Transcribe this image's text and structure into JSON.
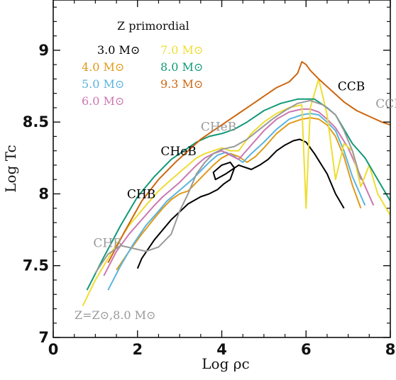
{
  "chart_data": {
    "type": "line",
    "title": "Z primordial",
    "xlabel": "Log ρc",
    "ylabel": "Log Tc",
    "xlim": [
      0,
      8
    ],
    "ylim": [
      7,
      9.35
    ],
    "xticks": [
      0,
      2,
      4,
      6,
      8
    ],
    "yticks": [
      7,
      7.5,
      8,
      8.5,
      9
    ],
    "grid": false,
    "legend_position": "top-left",
    "series": [
      {
        "name": "3.0 M⊙",
        "color": "#000000",
        "x": [
          2.0,
          2.1,
          2.4,
          2.8,
          3.2,
          3.5,
          3.7,
          3.9,
          4.05,
          4.2,
          4.3,
          4.2,
          4.0,
          3.8,
          3.85,
          4.1,
          4.4,
          4.6,
          4.7,
          4.9,
          5.1,
          5.3,
          5.5,
          5.7,
          5.85,
          6.0,
          6.2,
          6.5,
          6.7,
          6.9
        ],
        "y": [
          7.48,
          7.55,
          7.68,
          7.82,
          7.93,
          7.98,
          8.0,
          8.03,
          8.07,
          8.1,
          8.18,
          8.22,
          8.2,
          8.15,
          8.1,
          8.14,
          8.2,
          8.18,
          8.17,
          8.2,
          8.24,
          8.3,
          8.34,
          8.37,
          8.38,
          8.36,
          8.28,
          8.14,
          8.0,
          7.9
        ]
      },
      {
        "name": "4.0 M⊙",
        "color": "#e09a1a",
        "x": [
          1.5,
          1.8,
          2.1,
          2.4,
          2.6,
          2.8,
          3.0,
          3.2,
          3.4,
          3.6,
          3.8,
          4.0,
          4.2,
          4.4,
          4.6,
          4.8,
          5.0,
          5.3,
          5.6,
          5.9,
          6.1,
          6.3,
          6.5,
          6.7,
          6.9,
          7.1,
          7.3
        ],
        "y": [
          7.47,
          7.6,
          7.72,
          7.83,
          7.9,
          7.96,
          8.0,
          8.02,
          8.08,
          8.14,
          8.2,
          8.25,
          8.28,
          8.26,
          8.22,
          8.26,
          8.32,
          8.42,
          8.49,
          8.52,
          8.53,
          8.52,
          8.48,
          8.4,
          8.26,
          8.06,
          7.9
        ]
      },
      {
        "name": "5.0 M⊙",
        "color": "#5ab4e0",
        "x": [
          1.3,
          1.6,
          1.9,
          2.2,
          2.5,
          2.7,
          2.9,
          3.1,
          3.3,
          3.5,
          3.7,
          3.9,
          4.1,
          4.3,
          4.5,
          4.7,
          5.0,
          5.3,
          5.6,
          5.9,
          6.1,
          6.3,
          6.5,
          6.7,
          6.9,
          7.1,
          7.4
        ],
        "y": [
          7.33,
          7.5,
          7.65,
          7.78,
          7.88,
          7.95,
          8.0,
          8.05,
          8.1,
          8.16,
          8.22,
          8.27,
          8.29,
          8.26,
          8.22,
          8.28,
          8.36,
          8.45,
          8.52,
          8.55,
          8.56,
          8.55,
          8.5,
          8.44,
          8.3,
          8.12,
          7.92
        ]
      },
      {
        "name": "6.0 M⊙",
        "color": "#cc77b0",
        "x": [
          1.2,
          1.5,
          1.8,
          2.1,
          2.4,
          2.6,
          2.8,
          3.0,
          3.2,
          3.4,
          3.6,
          3.8,
          4.0,
          4.2,
          4.4,
          4.7,
          5.0,
          5.3,
          5.6,
          5.9,
          6.1,
          6.3,
          6.5,
          6.7,
          7.0,
          7.3,
          7.6
        ],
        "y": [
          7.43,
          7.6,
          7.72,
          7.82,
          7.92,
          7.98,
          8.03,
          8.08,
          8.14,
          8.2,
          8.25,
          8.28,
          8.3,
          8.27,
          8.24,
          8.34,
          8.44,
          8.52,
          8.57,
          8.59,
          8.59,
          8.57,
          8.52,
          8.46,
          8.32,
          8.12,
          7.92
        ]
      },
      {
        "name": "7.0 M⊙",
        "color": "#eedd33",
        "x": [
          0.7,
          1.0,
          1.4,
          1.8,
          2.2,
          2.5,
          2.8,
          3.0,
          3.2,
          3.4,
          3.6,
          3.8,
          4.0,
          4.2,
          4.4,
          4.7,
          5.0,
          5.3,
          5.6,
          5.9,
          6.0,
          6.1,
          6.3,
          6.5,
          6.7,
          6.9,
          7.1,
          7.3,
          7.5,
          7.7,
          8.0
        ],
        "y": [
          7.22,
          7.4,
          7.6,
          7.78,
          7.92,
          8.02,
          8.1,
          8.15,
          8.2,
          8.25,
          8.28,
          8.3,
          8.32,
          8.3,
          8.3,
          8.42,
          8.5,
          8.56,
          8.6,
          8.62,
          7.9,
          8.6,
          8.8,
          8.55,
          8.1,
          8.35,
          8.3,
          8.05,
          8.2,
          8.0,
          7.85
        ]
      },
      {
        "name": "8.0 M⊙",
        "color": "#119977",
        "x": [
          0.8,
          1.2,
          1.6,
          2.0,
          2.4,
          2.8,
          3.1,
          3.4,
          3.7,
          4.0,
          4.3,
          4.6,
          5.0,
          5.4,
          5.8,
          6.2,
          6.5,
          6.7,
          6.9,
          7.1,
          7.4,
          7.7,
          8.0
        ],
        "y": [
          7.33,
          7.56,
          7.78,
          7.98,
          8.12,
          8.24,
          8.3,
          8.36,
          8.4,
          8.42,
          8.45,
          8.5,
          8.58,
          8.63,
          8.66,
          8.66,
          8.6,
          8.55,
          8.45,
          8.35,
          8.25,
          8.1,
          7.95
        ]
      },
      {
        "name": "9.3 M⊙",
        "color": "#cc6611",
        "x": [
          1.3,
          1.7,
          2.1,
          2.5,
          2.9,
          3.2,
          3.5,
          3.8,
          4.1,
          4.4,
          4.7,
          5.0,
          5.3,
          5.6,
          5.8,
          5.9,
          6.0,
          6.1,
          6.3,
          6.6,
          6.9,
          7.2,
          7.5,
          7.8,
          8.0
        ],
        "y": [
          7.52,
          7.74,
          7.95,
          8.1,
          8.22,
          8.3,
          8.38,
          8.44,
          8.5,
          8.56,
          8.62,
          8.68,
          8.74,
          8.78,
          8.84,
          8.92,
          8.9,
          8.86,
          8.8,
          8.72,
          8.64,
          8.58,
          8.54,
          8.5,
          8.48
        ]
      },
      {
        "name": "Z=Z⊙,8.0 M⊙",
        "color": "#999999",
        "x": [
          1.0,
          1.3,
          1.6,
          1.9,
          2.2,
          2.5,
          2.8,
          3.0,
          3.2,
          3.4,
          3.6,
          3.8,
          4.0,
          4.3,
          4.6,
          4.9,
          5.2,
          5.5,
          5.8,
          6.1,
          6.4,
          6.7,
          6.9,
          7.1,
          7.3
        ],
        "y": [
          7.45,
          7.58,
          7.64,
          7.62,
          7.6,
          7.63,
          7.72,
          7.88,
          8.0,
          8.14,
          8.22,
          8.28,
          8.31,
          8.33,
          8.38,
          8.45,
          8.52,
          8.58,
          8.63,
          8.65,
          8.62,
          8.55,
          8.44,
          8.3,
          8.1
        ]
      }
    ],
    "annotations": [
      {
        "text": "CCB",
        "x": 6.75,
        "y": 8.72,
        "color": "#000000"
      },
      {
        "text": "CCB",
        "x": 7.65,
        "y": 8.6,
        "color": "#999999"
      },
      {
        "text": "CHeB",
        "x": 3.5,
        "y": 8.44,
        "color": "#999999"
      },
      {
        "text": "CHeB",
        "x": 2.55,
        "y": 8.27,
        "color": "#000000"
      },
      {
        "text": "CHB",
        "x": 1.75,
        "y": 7.97,
        "color": "#000000"
      },
      {
        "text": "CHB",
        "x": 0.95,
        "y": 7.63,
        "color": "#999999"
      }
    ],
    "note": "Z=Z⊙,8.0 M⊙"
  }
}
